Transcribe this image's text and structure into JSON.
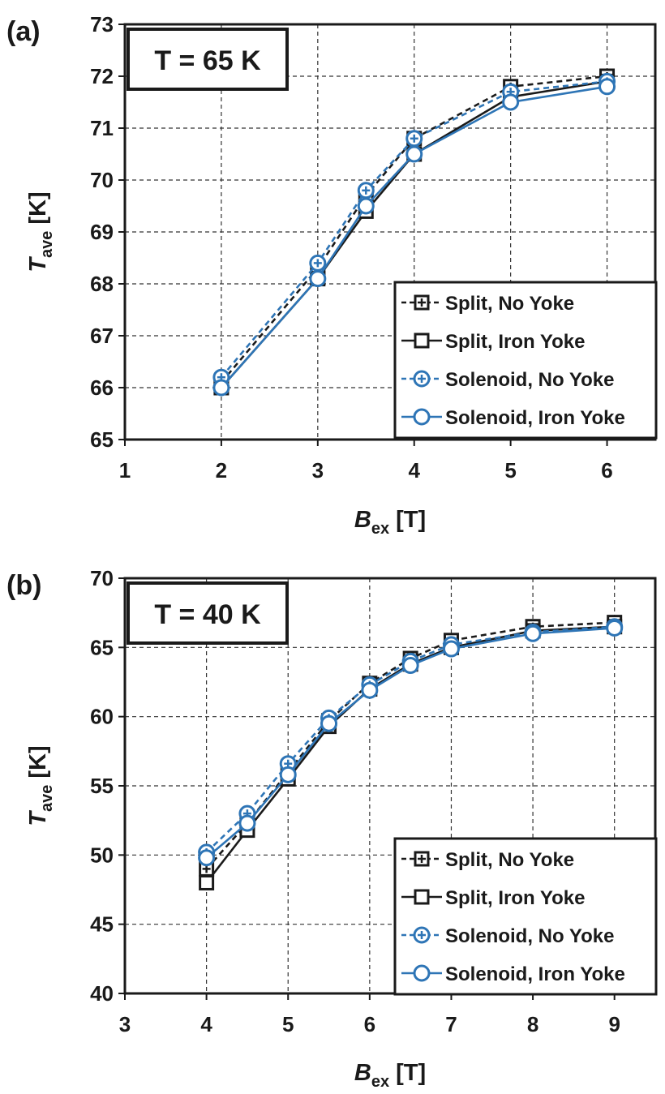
{
  "chart_data": [
    {
      "type": "line",
      "panel_label": "(a)",
      "annotation": "T = 65 K",
      "xlabel_main": "B",
      "xlabel_sub": "ex",
      "xlabel_unit": "[T]",
      "ylabel_main": "T",
      "ylabel_sub": "ave",
      "ylabel_unit": "[K]",
      "xlim": [
        1,
        6.5
      ],
      "ylim": [
        65,
        73
      ],
      "xticks": [
        1,
        2,
        3,
        4,
        5,
        6
      ],
      "yticks": [
        65,
        66,
        67,
        68,
        69,
        70,
        71,
        72,
        73
      ],
      "grid": true,
      "legend_position": "bottom-right",
      "series": [
        {
          "name": "Split, No Yoke",
          "color": "#1a1a1a",
          "dashed": true,
          "marker": "square-plus",
          "x": [
            2,
            3,
            3.5,
            4,
            5,
            6
          ],
          "y": [
            66.1,
            68.3,
            69.7,
            70.8,
            71.8,
            72.0
          ]
        },
        {
          "name": "Split, Iron Yoke",
          "color": "#1a1a1a",
          "dashed": false,
          "marker": "square",
          "x": [
            2,
            3,
            3.5,
            4,
            5,
            6
          ],
          "y": [
            66.0,
            68.1,
            69.4,
            70.5,
            71.6,
            71.9
          ]
        },
        {
          "name": "Solenoid, No Yoke",
          "color": "#2e75b6",
          "dashed": true,
          "marker": "circle-plus",
          "x": [
            2,
            3,
            3.5,
            4,
            5,
            6
          ],
          "y": [
            66.2,
            68.4,
            69.8,
            70.8,
            71.7,
            71.9
          ]
        },
        {
          "name": "Solenoid, Iron Yoke",
          "color": "#2e75b6",
          "dashed": false,
          "marker": "circle",
          "x": [
            2,
            3,
            3.5,
            4,
            5,
            6
          ],
          "y": [
            66.0,
            68.1,
            69.5,
            70.5,
            71.5,
            71.8
          ]
        }
      ]
    },
    {
      "type": "line",
      "panel_label": "(b)",
      "annotation": "T = 40 K",
      "xlabel_main": "B",
      "xlabel_sub": "ex",
      "xlabel_unit": "[T]",
      "ylabel_main": "T",
      "ylabel_sub": "ave",
      "ylabel_unit": "[K]",
      "xlim": [
        3,
        9.5
      ],
      "ylim": [
        40,
        70
      ],
      "xticks": [
        3,
        4,
        5,
        6,
        7,
        8,
        9
      ],
      "yticks": [
        40,
        45,
        50,
        55,
        60,
        65,
        70
      ],
      "grid": true,
      "legend_position": "bottom-right",
      "series": [
        {
          "name": "Split, No Yoke",
          "color": "#1a1a1a",
          "dashed": true,
          "marker": "square-plus",
          "x": [
            4,
            4.5,
            5,
            5.5,
            6,
            6.5,
            7,
            8,
            9
          ],
          "y": [
            49.0,
            52.3,
            56.0,
            59.7,
            62.4,
            64.2,
            65.5,
            66.5,
            66.8
          ]
        },
        {
          "name": "Split, Iron Yoke",
          "color": "#1a1a1a",
          "dashed": false,
          "marker": "square",
          "x": [
            4,
            4.5,
            5,
            5.5,
            6,
            6.5,
            7,
            8,
            9
          ],
          "y": [
            48.0,
            51.8,
            55.5,
            59.3,
            62.0,
            63.8,
            65.0,
            66.2,
            66.5
          ]
        },
        {
          "name": "Solenoid, No Yoke",
          "color": "#2e75b6",
          "dashed": true,
          "marker": "circle-plus",
          "x": [
            4,
            4.5,
            5,
            5.5,
            6,
            6.5,
            7,
            8,
            9
          ],
          "y": [
            50.2,
            53.0,
            56.6,
            59.9,
            62.3,
            64.0,
            65.2,
            66.1,
            66.5
          ]
        },
        {
          "name": "Solenoid, Iron Yoke",
          "color": "#2e75b6",
          "dashed": false,
          "marker": "circle",
          "x": [
            4,
            4.5,
            5,
            5.5,
            6,
            6.5,
            7,
            8,
            9
          ],
          "y": [
            49.8,
            52.3,
            55.8,
            59.5,
            61.9,
            63.7,
            64.9,
            66.0,
            66.4
          ]
        }
      ]
    }
  ]
}
